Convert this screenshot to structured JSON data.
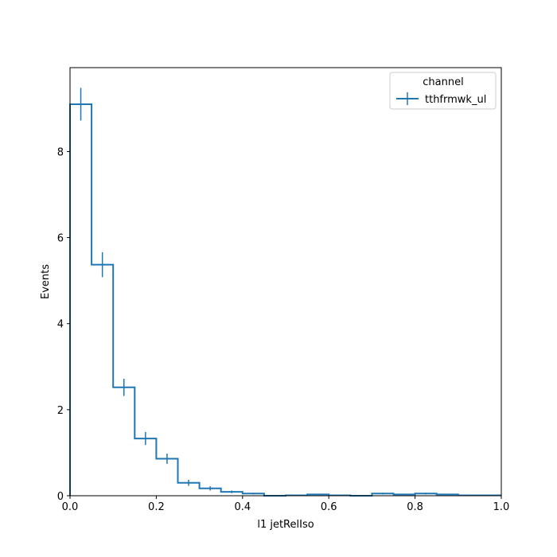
{
  "chart_data": {
    "type": "histogram",
    "xlabel": "l1 jetRelIso",
    "ylabel": "Events",
    "xlim": [
      0.0,
      1.0
    ],
    "ylim": [
      0.0,
      9.95
    ],
    "xticks": [
      0.0,
      0.2,
      0.4,
      0.6,
      0.8,
      1.0
    ],
    "xtick_labels": [
      "0.0",
      "0.2",
      "0.4",
      "0.6",
      "0.8",
      "1.0"
    ],
    "yticks": [
      0,
      2,
      4,
      6,
      8
    ],
    "ytick_labels": [
      "0",
      "2",
      "4",
      "6",
      "8"
    ],
    "grid": false,
    "legend": {
      "title": "channel",
      "placement": "upper right",
      "entries": [
        "tthfrmwk_ul"
      ]
    },
    "bin_edges": [
      0.0,
      0.05,
      0.1,
      0.15,
      0.2,
      0.25,
      0.3,
      0.35,
      0.4,
      0.45,
      0.5,
      0.55,
      0.6,
      0.65,
      0.7,
      0.75,
      0.8,
      0.85,
      0.9,
      0.95,
      1.0
    ],
    "series": [
      {
        "name": "tthfrmwk_ul",
        "color": "#1f77b4",
        "values": [
          9.1,
          5.37,
          2.52,
          1.33,
          0.86,
          0.3,
          0.17,
          0.09,
          0.05,
          0.0,
          0.01,
          0.03,
          0.01,
          0.0,
          0.05,
          0.03,
          0.05,
          0.03,
          0.01,
          0.01
        ],
        "errors": [
          0.38,
          0.29,
          0.2,
          0.15,
          0.12,
          0.07,
          0.05,
          0.03,
          0.02,
          0.0,
          0.01,
          0.01,
          0.01,
          0.0,
          0.02,
          0.01,
          0.02,
          0.01,
          0.01,
          0.01
        ]
      }
    ]
  }
}
